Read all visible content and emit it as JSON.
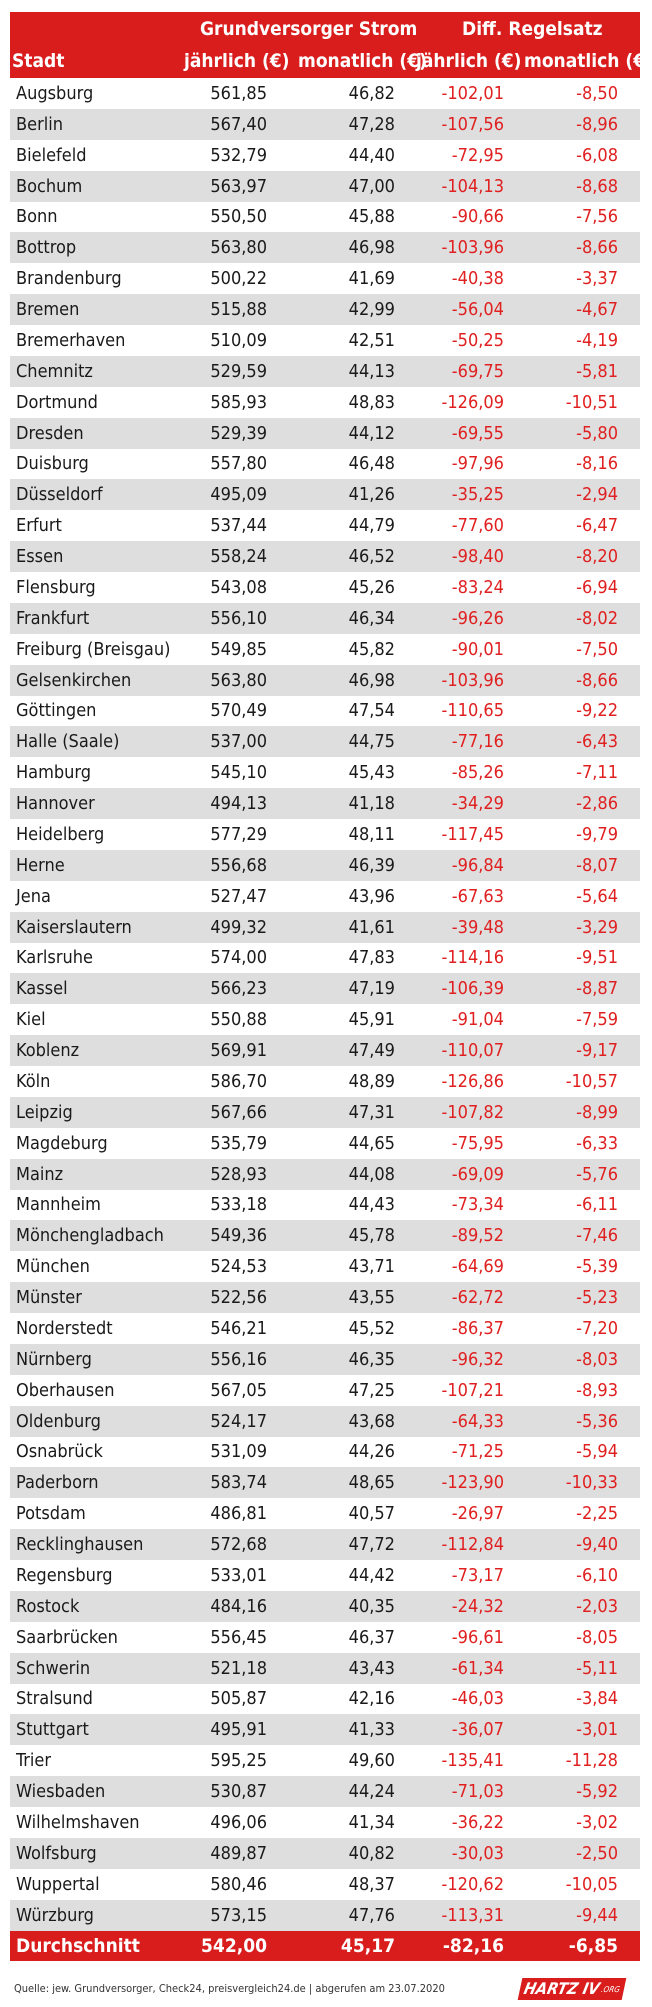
{
  "header": {
    "group1": "Grundversorger Strom",
    "group2": "Diff.  Regelsatz",
    "col_city": "Stadt",
    "col_g_yearly": "jährlich (€)",
    "col_g_monthly": "monatlich (€)",
    "col_d_yearly": "jährlich (€)",
    "col_d_monthly": "monatlich (€)"
  },
  "colors": {
    "accent": "#d91d1d",
    "negative": "#e02020",
    "stripe": "#dedede"
  },
  "chart_data": {
    "type": "table",
    "columns": [
      "Stadt",
      "jährlich (€)",
      "monatlich (€)",
      "jährlich (€)",
      "monatlich (€)"
    ],
    "rows": [
      [
        "Augsburg",
        "561,85",
        "46,82",
        "-102,01",
        "-8,50"
      ],
      [
        "Berlin",
        "567,40",
        "47,28",
        "-107,56",
        "-8,96"
      ],
      [
        "Bielefeld",
        "532,79",
        "44,40",
        "-72,95",
        "-6,08"
      ],
      [
        "Bochum",
        "563,97",
        "47,00",
        "-104,13",
        "-8,68"
      ],
      [
        "Bonn",
        "550,50",
        "45,88",
        "-90,66",
        "-7,56"
      ],
      [
        "Bottrop",
        "563,80",
        "46,98",
        "-103,96",
        "-8,66"
      ],
      [
        "Brandenburg",
        "500,22",
        "41,69",
        "-40,38",
        "-3,37"
      ],
      [
        "Bremen",
        "515,88",
        "42,99",
        "-56,04",
        "-4,67"
      ],
      [
        "Bremerhaven",
        "510,09",
        "42,51",
        "-50,25",
        "-4,19"
      ],
      [
        "Chemnitz",
        "529,59",
        "44,13",
        "-69,75",
        "-5,81"
      ],
      [
        "Dortmund",
        "585,93",
        "48,83",
        "-126,09",
        "-10,51"
      ],
      [
        "Dresden",
        "529,39",
        "44,12",
        "-69,55",
        "-5,80"
      ],
      [
        "Duisburg",
        "557,80",
        "46,48",
        "-97,96",
        "-8,16"
      ],
      [
        "Düsseldorf",
        "495,09",
        "41,26",
        "-35,25",
        "-2,94"
      ],
      [
        "Erfurt",
        "537,44",
        "44,79",
        "-77,60",
        "-6,47"
      ],
      [
        "Essen",
        "558,24",
        "46,52",
        "-98,40",
        "-8,20"
      ],
      [
        "Flensburg",
        "543,08",
        "45,26",
        "-83,24",
        "-6,94"
      ],
      [
        "Frankfurt",
        "556,10",
        "46,34",
        "-96,26",
        "-8,02"
      ],
      [
        "Freiburg (Breisgau)",
        "549,85",
        "45,82",
        "-90,01",
        "-7,50"
      ],
      [
        "Gelsenkirchen",
        "563,80",
        "46,98",
        "-103,96",
        "-8,66"
      ],
      [
        "Göttingen",
        "570,49",
        "47,54",
        "-110,65",
        "-9,22"
      ],
      [
        "Halle (Saale)",
        "537,00",
        "44,75",
        "-77,16",
        "-6,43"
      ],
      [
        "Hamburg",
        "545,10",
        "45,43",
        "-85,26",
        "-7,11"
      ],
      [
        "Hannover",
        "494,13",
        "41,18",
        "-34,29",
        "-2,86"
      ],
      [
        "Heidelberg",
        "577,29",
        "48,11",
        "-117,45",
        "-9,79"
      ],
      [
        "Herne",
        "556,68",
        "46,39",
        "-96,84",
        "-8,07"
      ],
      [
        "Jena",
        "527,47",
        "43,96",
        "-67,63",
        "-5,64"
      ],
      [
        "Kaiserslautern",
        "499,32",
        "41,61",
        "-39,48",
        "-3,29"
      ],
      [
        "Karlsruhe",
        "574,00",
        "47,83",
        "-114,16",
        "-9,51"
      ],
      [
        "Kassel",
        "566,23",
        "47,19",
        "-106,39",
        "-8,87"
      ],
      [
        "Kiel",
        "550,88",
        "45,91",
        "-91,04",
        "-7,59"
      ],
      [
        "Koblenz",
        "569,91",
        "47,49",
        "-110,07",
        "-9,17"
      ],
      [
        "Köln",
        "586,70",
        "48,89",
        "-126,86",
        "-10,57"
      ],
      [
        "Leipzig",
        "567,66",
        "47,31",
        "-107,82",
        "-8,99"
      ],
      [
        "Magdeburg",
        "535,79",
        "44,65",
        "-75,95",
        "-6,33"
      ],
      [
        "Mainz",
        "528,93",
        "44,08",
        "-69,09",
        "-5,76"
      ],
      [
        "Mannheim",
        "533,18",
        "44,43",
        "-73,34",
        "-6,11"
      ],
      [
        "Mönchengladbach",
        "549,36",
        "45,78",
        "-89,52",
        "-7,46"
      ],
      [
        "München",
        "524,53",
        "43,71",
        "-64,69",
        "-5,39"
      ],
      [
        "Münster",
        "522,56",
        "43,55",
        "-62,72",
        "-5,23"
      ],
      [
        "Norderstedt",
        "546,21",
        "45,52",
        "-86,37",
        "-7,20"
      ],
      [
        "Nürnberg",
        "556,16",
        "46,35",
        "-96,32",
        "-8,03"
      ],
      [
        "Oberhausen",
        "567,05",
        "47,25",
        "-107,21",
        "-8,93"
      ],
      [
        "Oldenburg",
        "524,17",
        "43,68",
        "-64,33",
        "-5,36"
      ],
      [
        "Osnabrück",
        "531,09",
        "44,26",
        "-71,25",
        "-5,94"
      ],
      [
        "Paderborn",
        "583,74",
        "48,65",
        "-123,90",
        "-10,33"
      ],
      [
        "Potsdam",
        "486,81",
        "40,57",
        "-26,97",
        "-2,25"
      ],
      [
        "Recklinghausen",
        "572,68",
        "47,72",
        "-112,84",
        "-9,40"
      ],
      [
        "Regensburg",
        "533,01",
        "44,42",
        "-73,17",
        "-6,10"
      ],
      [
        "Rostock",
        "484,16",
        "40,35",
        "-24,32",
        "-2,03"
      ],
      [
        "Saarbrücken",
        "556,45",
        "46,37",
        "-96,61",
        "-8,05"
      ],
      [
        "Schwerin",
        "521,18",
        "43,43",
        "-61,34",
        "-5,11"
      ],
      [
        "Stralsund",
        "505,87",
        "42,16",
        "-46,03",
        "-3,84"
      ],
      [
        "Stuttgart",
        "495,91",
        "41,33",
        "-36,07",
        "-3,01"
      ],
      [
        "Trier",
        "595,25",
        "49,60",
        "-135,41",
        "-11,28"
      ],
      [
        "Wiesbaden",
        "530,87",
        "44,24",
        "-71,03",
        "-5,92"
      ],
      [
        "Wilhelmshaven",
        "496,06",
        "41,34",
        "-36,22",
        "-3,02"
      ],
      [
        "Wolfsburg",
        "489,87",
        "40,82",
        "-30,03",
        "-2,50"
      ],
      [
        "Wuppertal",
        "580,46",
        "48,37",
        "-120,62",
        "-10,05"
      ],
      [
        "Würzburg",
        "573,15",
        "47,76",
        "-113,31",
        "-9,44"
      ]
    ],
    "total": [
      "Durchschnitt",
      "542,00",
      "45,17",
      "-82,16",
      "-6,85"
    ]
  },
  "footer": {
    "source": "Quelle: jew. Grundversorger, Check24, preisvergleich24.de | abgerufen am 23.07.2020",
    "logo_main": "HARTZ IV",
    "logo_small": ".ORG"
  }
}
